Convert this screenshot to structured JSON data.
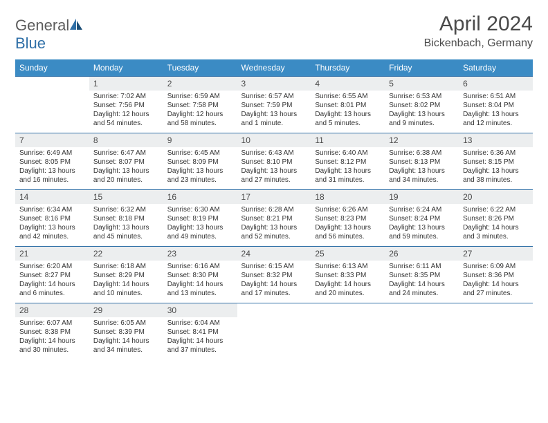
{
  "logo": {
    "word1": "General",
    "word2": "Blue"
  },
  "header": {
    "month_title": "April 2024",
    "location": "Bickenbach, Germany"
  },
  "colors": {
    "header_bg": "#3b8bc4",
    "header_text": "#ffffff",
    "cell_border": "#2f6fa7",
    "daynum_bg": "#eceeef",
    "text": "#333333",
    "title_text": "#4a4a4a",
    "logo_gray": "#5c5c5c",
    "logo_blue": "#2f6fa7",
    "page_bg": "#ffffff"
  },
  "typography": {
    "month_title_fontsize": 30,
    "location_fontsize": 16,
    "weekday_fontsize": 12,
    "daynum_fontsize": 12,
    "body_fontsize": 10
  },
  "weekdays": [
    "Sunday",
    "Monday",
    "Tuesday",
    "Wednesday",
    "Thursday",
    "Friday",
    "Saturday"
  ],
  "weeks": [
    [
      {
        "day": "",
        "lines": []
      },
      {
        "day": "1",
        "lines": [
          "Sunrise: 7:02 AM",
          "Sunset: 7:56 PM",
          "Daylight: 12 hours",
          "and 54 minutes."
        ]
      },
      {
        "day": "2",
        "lines": [
          "Sunrise: 6:59 AM",
          "Sunset: 7:58 PM",
          "Daylight: 12 hours",
          "and 58 minutes."
        ]
      },
      {
        "day": "3",
        "lines": [
          "Sunrise: 6:57 AM",
          "Sunset: 7:59 PM",
          "Daylight: 13 hours",
          "and 1 minute."
        ]
      },
      {
        "day": "4",
        "lines": [
          "Sunrise: 6:55 AM",
          "Sunset: 8:01 PM",
          "Daylight: 13 hours",
          "and 5 minutes."
        ]
      },
      {
        "day": "5",
        "lines": [
          "Sunrise: 6:53 AM",
          "Sunset: 8:02 PM",
          "Daylight: 13 hours",
          "and 9 minutes."
        ]
      },
      {
        "day": "6",
        "lines": [
          "Sunrise: 6:51 AM",
          "Sunset: 8:04 PM",
          "Daylight: 13 hours",
          "and 12 minutes."
        ]
      }
    ],
    [
      {
        "day": "7",
        "lines": [
          "Sunrise: 6:49 AM",
          "Sunset: 8:05 PM",
          "Daylight: 13 hours",
          "and 16 minutes."
        ]
      },
      {
        "day": "8",
        "lines": [
          "Sunrise: 6:47 AM",
          "Sunset: 8:07 PM",
          "Daylight: 13 hours",
          "and 20 minutes."
        ]
      },
      {
        "day": "9",
        "lines": [
          "Sunrise: 6:45 AM",
          "Sunset: 8:09 PM",
          "Daylight: 13 hours",
          "and 23 minutes."
        ]
      },
      {
        "day": "10",
        "lines": [
          "Sunrise: 6:43 AM",
          "Sunset: 8:10 PM",
          "Daylight: 13 hours",
          "and 27 minutes."
        ]
      },
      {
        "day": "11",
        "lines": [
          "Sunrise: 6:40 AM",
          "Sunset: 8:12 PM",
          "Daylight: 13 hours",
          "and 31 minutes."
        ]
      },
      {
        "day": "12",
        "lines": [
          "Sunrise: 6:38 AM",
          "Sunset: 8:13 PM",
          "Daylight: 13 hours",
          "and 34 minutes."
        ]
      },
      {
        "day": "13",
        "lines": [
          "Sunrise: 6:36 AM",
          "Sunset: 8:15 PM",
          "Daylight: 13 hours",
          "and 38 minutes."
        ]
      }
    ],
    [
      {
        "day": "14",
        "lines": [
          "Sunrise: 6:34 AM",
          "Sunset: 8:16 PM",
          "Daylight: 13 hours",
          "and 42 minutes."
        ]
      },
      {
        "day": "15",
        "lines": [
          "Sunrise: 6:32 AM",
          "Sunset: 8:18 PM",
          "Daylight: 13 hours",
          "and 45 minutes."
        ]
      },
      {
        "day": "16",
        "lines": [
          "Sunrise: 6:30 AM",
          "Sunset: 8:19 PM",
          "Daylight: 13 hours",
          "and 49 minutes."
        ]
      },
      {
        "day": "17",
        "lines": [
          "Sunrise: 6:28 AM",
          "Sunset: 8:21 PM",
          "Daylight: 13 hours",
          "and 52 minutes."
        ]
      },
      {
        "day": "18",
        "lines": [
          "Sunrise: 6:26 AM",
          "Sunset: 8:23 PM",
          "Daylight: 13 hours",
          "and 56 minutes."
        ]
      },
      {
        "day": "19",
        "lines": [
          "Sunrise: 6:24 AM",
          "Sunset: 8:24 PM",
          "Daylight: 13 hours",
          "and 59 minutes."
        ]
      },
      {
        "day": "20",
        "lines": [
          "Sunrise: 6:22 AM",
          "Sunset: 8:26 PM",
          "Daylight: 14 hours",
          "and 3 minutes."
        ]
      }
    ],
    [
      {
        "day": "21",
        "lines": [
          "Sunrise: 6:20 AM",
          "Sunset: 8:27 PM",
          "Daylight: 14 hours",
          "and 6 minutes."
        ]
      },
      {
        "day": "22",
        "lines": [
          "Sunrise: 6:18 AM",
          "Sunset: 8:29 PM",
          "Daylight: 14 hours",
          "and 10 minutes."
        ]
      },
      {
        "day": "23",
        "lines": [
          "Sunrise: 6:16 AM",
          "Sunset: 8:30 PM",
          "Daylight: 14 hours",
          "and 13 minutes."
        ]
      },
      {
        "day": "24",
        "lines": [
          "Sunrise: 6:15 AM",
          "Sunset: 8:32 PM",
          "Daylight: 14 hours",
          "and 17 minutes."
        ]
      },
      {
        "day": "25",
        "lines": [
          "Sunrise: 6:13 AM",
          "Sunset: 8:33 PM",
          "Daylight: 14 hours",
          "and 20 minutes."
        ]
      },
      {
        "day": "26",
        "lines": [
          "Sunrise: 6:11 AM",
          "Sunset: 8:35 PM",
          "Daylight: 14 hours",
          "and 24 minutes."
        ]
      },
      {
        "day": "27",
        "lines": [
          "Sunrise: 6:09 AM",
          "Sunset: 8:36 PM",
          "Daylight: 14 hours",
          "and 27 minutes."
        ]
      }
    ],
    [
      {
        "day": "28",
        "lines": [
          "Sunrise: 6:07 AM",
          "Sunset: 8:38 PM",
          "Daylight: 14 hours",
          "and 30 minutes."
        ]
      },
      {
        "day": "29",
        "lines": [
          "Sunrise: 6:05 AM",
          "Sunset: 8:39 PM",
          "Daylight: 14 hours",
          "and 34 minutes."
        ]
      },
      {
        "day": "30",
        "lines": [
          "Sunrise: 6:04 AM",
          "Sunset: 8:41 PM",
          "Daylight: 14 hours",
          "and 37 minutes."
        ]
      },
      {
        "day": "",
        "lines": []
      },
      {
        "day": "",
        "lines": []
      },
      {
        "day": "",
        "lines": []
      },
      {
        "day": "",
        "lines": []
      }
    ]
  ]
}
